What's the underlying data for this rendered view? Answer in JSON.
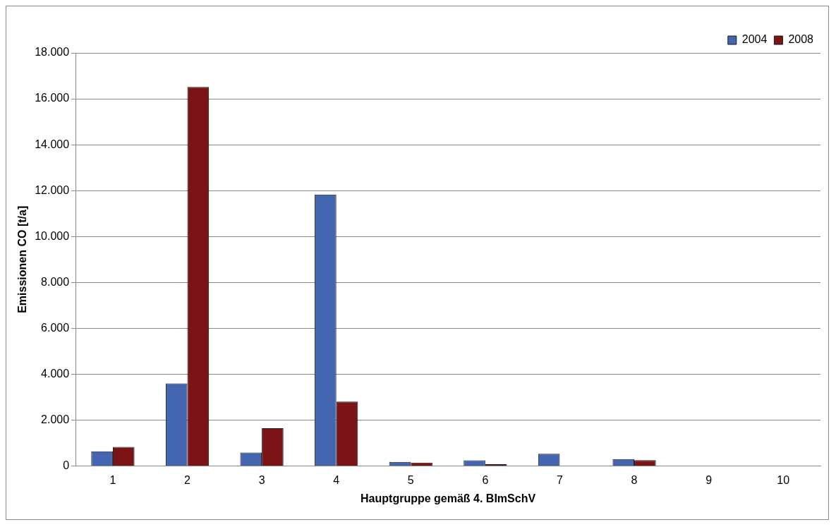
{
  "chart_data": {
    "type": "bar",
    "xlabel": "Hauptgruppe gemäß 4. BImSchV",
    "ylabel": "Emissionen CO [t/a]",
    "categories": [
      "1",
      "2",
      "3",
      "4",
      "5",
      "6",
      "7",
      "8",
      "9",
      "10"
    ],
    "series": [
      {
        "name": "2004",
        "color": "#4466b0",
        "values": [
          640,
          3600,
          590,
          11830,
          180,
          250,
          530,
          300,
          0,
          20
        ]
      },
      {
        "name": "2008",
        "color": "#7b1416",
        "values": [
          830,
          16520,
          1650,
          2810,
          150,
          80,
          0,
          260,
          0,
          0
        ]
      }
    ],
    "ylim": [
      0,
      18000
    ],
    "yticks": [
      {
        "value": 0,
        "label": "0"
      },
      {
        "value": 2000,
        "label": "2.000"
      },
      {
        "value": 4000,
        "label": "4.000"
      },
      {
        "value": 6000,
        "label": "6.000"
      },
      {
        "value": 8000,
        "label": "8.000"
      },
      {
        "value": 10000,
        "label": "10.000"
      },
      {
        "value": 12000,
        "label": "12.000"
      },
      {
        "value": 14000,
        "label": "14.000"
      },
      {
        "value": 16000,
        "label": "16.000"
      },
      {
        "value": 18000,
        "label": "18.000"
      }
    ],
    "grid": "y",
    "legend": "top right"
  }
}
